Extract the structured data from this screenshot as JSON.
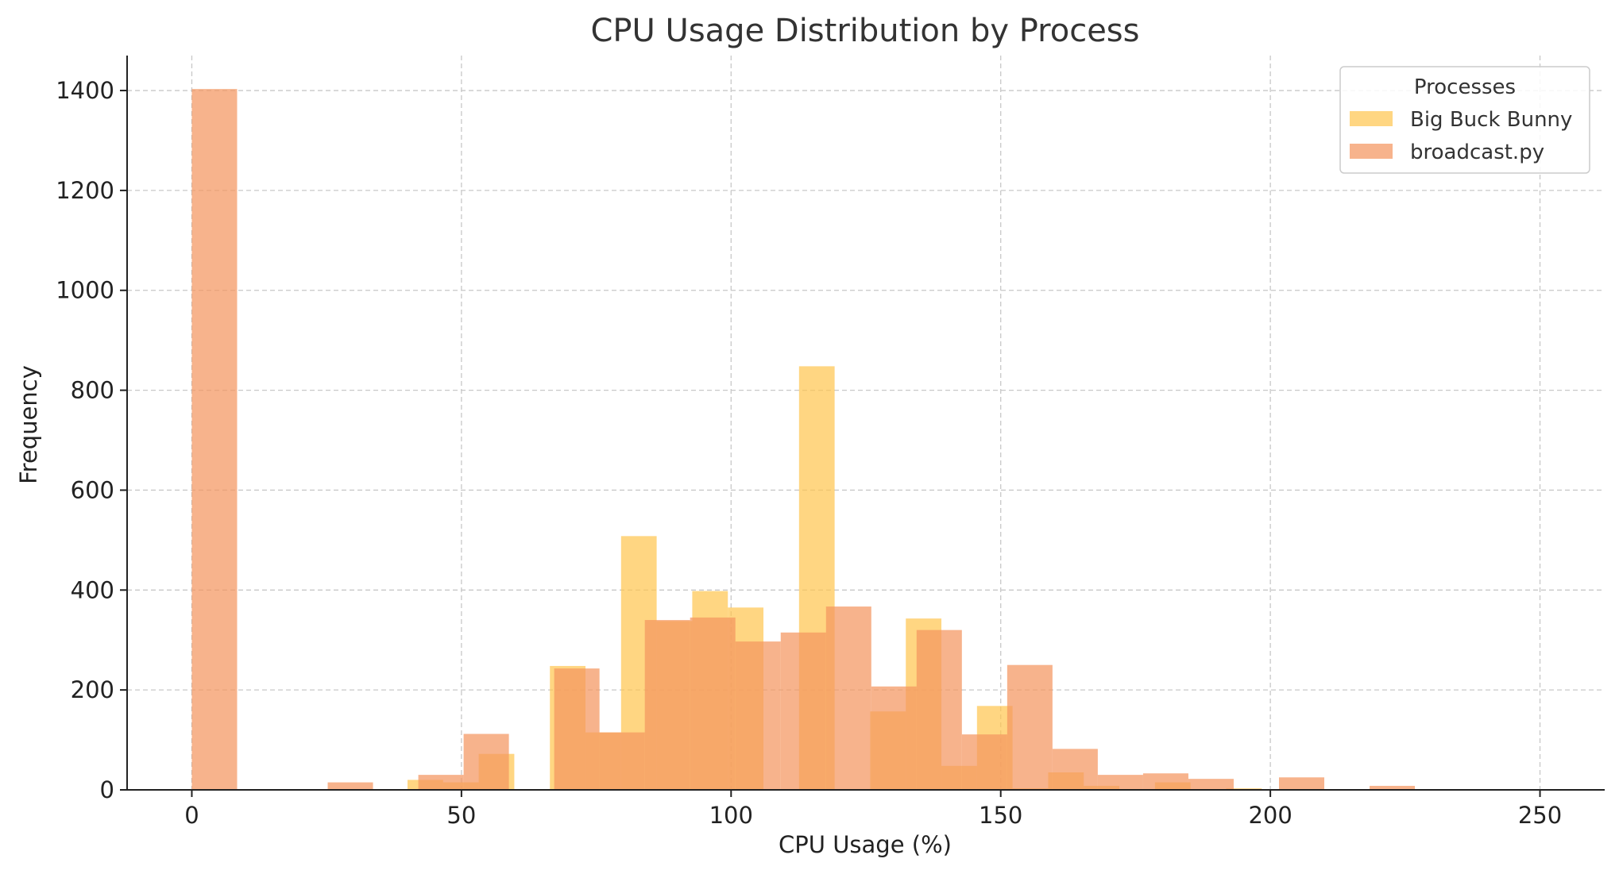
{
  "chart_data": {
    "type": "bar",
    "title": "CPU Usage Distribution by Process",
    "xlabel": "CPU Usage (%)",
    "ylabel": "Frequency",
    "xlim": [
      -12,
      262
    ],
    "ylim": [
      0,
      1470
    ],
    "xticks": [
      0,
      50,
      100,
      150,
      200,
      250
    ],
    "yticks": [
      0,
      200,
      400,
      600,
      800,
      1000,
      1200,
      1400
    ],
    "grid": true,
    "legend": {
      "title": "Processes",
      "placement": "top-right"
    },
    "series": [
      {
        "name": "Big Buck Bunny",
        "color": "#ffc44d",
        "opacity": 0.7,
        "bins": [
          {
            "x0": 40.0,
            "x1": 46.6,
            "value": 20
          },
          {
            "x0": 46.6,
            "x1": 53.2,
            "value": 15
          },
          {
            "x0": 53.2,
            "x1": 59.8,
            "value": 72
          },
          {
            "x0": 66.4,
            "x1": 73.0,
            "value": 248
          },
          {
            "x0": 73.0,
            "x1": 79.6,
            "value": 115
          },
          {
            "x0": 79.6,
            "x1": 86.2,
            "value": 508
          },
          {
            "x0": 86.2,
            "x1": 92.8,
            "value": 338
          },
          {
            "x0": 92.8,
            "x1": 99.4,
            "value": 398
          },
          {
            "x0": 99.4,
            "x1": 106.0,
            "value": 365
          },
          {
            "x0": 106.0,
            "x1": 112.6,
            "value": 0
          },
          {
            "x0": 112.6,
            "x1": 119.2,
            "value": 848
          },
          {
            "x0": 119.2,
            "x1": 125.8,
            "value": 0
          },
          {
            "x0": 125.8,
            "x1": 132.4,
            "value": 157
          },
          {
            "x0": 132.4,
            "x1": 139.0,
            "value": 343
          },
          {
            "x0": 139.0,
            "x1": 145.6,
            "value": 48
          },
          {
            "x0": 145.6,
            "x1": 152.2,
            "value": 168
          },
          {
            "x0": 152.2,
            "x1": 158.8,
            "value": 3
          },
          {
            "x0": 158.8,
            "x1": 165.4,
            "value": 35
          },
          {
            "x0": 165.4,
            "x1": 172.0,
            "value": 8
          },
          {
            "x0": 178.6,
            "x1": 185.2,
            "value": 15
          },
          {
            "x0": 191.8,
            "x1": 198.4,
            "value": 3
          }
        ]
      },
      {
        "name": "broadcast.py",
        "color": "#f4955f",
        "opacity": 0.72,
        "bins": [
          {
            "x0": 0.0,
            "x1": 8.4,
            "value": 1403
          },
          {
            "x0": 25.2,
            "x1": 33.6,
            "value": 15
          },
          {
            "x0": 42.0,
            "x1": 50.4,
            "value": 30
          },
          {
            "x0": 50.4,
            "x1": 58.8,
            "value": 112
          },
          {
            "x0": 67.2,
            "x1": 75.6,
            "value": 243
          },
          {
            "x0": 75.6,
            "x1": 84.0,
            "value": 115
          },
          {
            "x0": 84.0,
            "x1": 92.4,
            "value": 340
          },
          {
            "x0": 92.4,
            "x1": 100.8,
            "value": 345
          },
          {
            "x0": 100.8,
            "x1": 109.2,
            "value": 297
          },
          {
            "x0": 109.2,
            "x1": 117.6,
            "value": 315
          },
          {
            "x0": 117.6,
            "x1": 126.0,
            "value": 367
          },
          {
            "x0": 126.0,
            "x1": 134.4,
            "value": 207
          },
          {
            "x0": 134.4,
            "x1": 142.8,
            "value": 320
          },
          {
            "x0": 142.8,
            "x1": 151.2,
            "value": 111
          },
          {
            "x0": 151.2,
            "x1": 159.6,
            "value": 250
          },
          {
            "x0": 159.6,
            "x1": 168.0,
            "value": 82
          },
          {
            "x0": 168.0,
            "x1": 176.4,
            "value": 30
          },
          {
            "x0": 176.4,
            "x1": 184.8,
            "value": 33
          },
          {
            "x0": 184.8,
            "x1": 193.2,
            "value": 22
          },
          {
            "x0": 201.6,
            "x1": 210.0,
            "value": 25
          },
          {
            "x0": 218.4,
            "x1": 226.8,
            "value": 8
          }
        ]
      }
    ]
  }
}
